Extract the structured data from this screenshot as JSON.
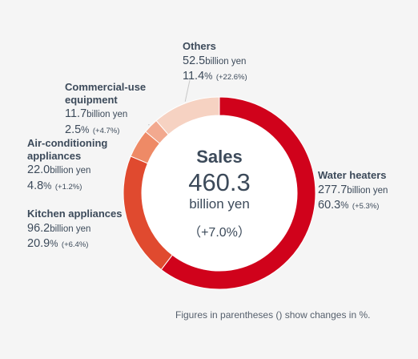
{
  "chart_data": {
    "type": "pie",
    "center": {
      "title": "Sales",
      "value": "460.3",
      "unit": "billion yen",
      "change": "（+7.0%）"
    },
    "slices": [
      {
        "label": "Water heaters",
        "value": 277.7,
        "value_text": "277.7",
        "unit": "billion yen",
        "share": 60.3,
        "share_text": "60.3",
        "pct": "%",
        "change": "(+5.3%)",
        "color": "#d0021b"
      },
      {
        "label": "Kitchen appliances",
        "value": 96.2,
        "value_text": "96.2",
        "unit": "billion yen",
        "share": 20.9,
        "share_text": "20.9",
        "pct": "%",
        "change": "(+6.4%)",
        "color": "#e04a2f"
      },
      {
        "label": "Air-conditioning appliances",
        "value": 22.0,
        "value_text": "22.0",
        "unit": "billion yen",
        "share": 4.8,
        "share_text": "4.8",
        "pct": "%",
        "change": "(+1.2%)",
        "color": "#ee8a66"
      },
      {
        "label": "Commercial-use equipment",
        "value": 11.7,
        "value_text": "11.7",
        "unit": "billion yen",
        "share": 2.5,
        "share_text": "2.5",
        "pct": "%",
        "change": "(+4.7%)",
        "color": "#f2a98f"
      },
      {
        "label": "Others",
        "value": 52.5,
        "value_text": "52.5",
        "unit": "billion yen",
        "share": 11.4,
        "share_text": "11.4",
        "pct": "%",
        "change": "(+22.6%)",
        "color": "#f6d2c2"
      }
    ],
    "footnote": "Figures in parentheses () show changes in %."
  },
  "colors": {
    "background": "#f5f5f5",
    "text": "#3c4a5a",
    "leader": "#c8c8c8",
    "inner_circle": "#ffffff"
  }
}
